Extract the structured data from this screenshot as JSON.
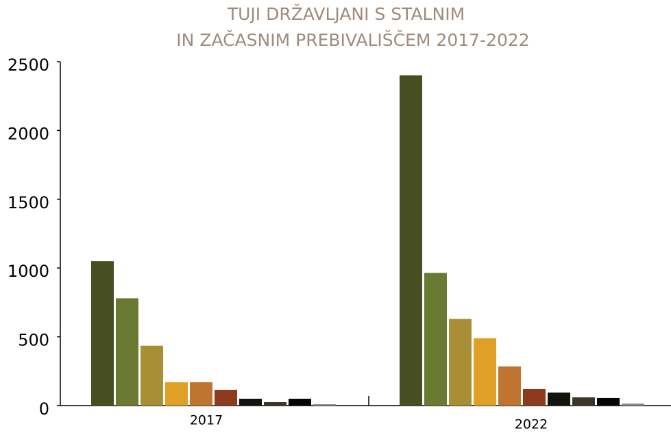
{
  "chart_data": {
    "type": "bar",
    "title": [
      "TUJI DRŽAVLJANI S STALNIM",
      "IN ZAČASNIM PREBIVALIŠČEM 2017-2022"
    ],
    "categories": [
      "2017",
      "2022"
    ],
    "series": [
      {
        "color": "#474f22",
        "values": [
          1050,
          2400
        ]
      },
      {
        "color": "#6b7a32",
        "values": [
          780,
          965
        ]
      },
      {
        "color": "#a88e35",
        "values": [
          435,
          630
        ]
      },
      {
        "color": "#e0a028",
        "values": [
          170,
          490
        ]
      },
      {
        "color": "#bf7430",
        "values": [
          170,
          285
        ]
      },
      {
        "color": "#8e3a1e",
        "values": [
          115,
          120
        ]
      },
      {
        "color": "#15130f",
        "values": [
          50,
          95
        ]
      },
      {
        "color": "#3d3528",
        "values": [
          25,
          60
        ]
      },
      {
        "color": "#050505",
        "values": [
          50,
          55
        ]
      },
      {
        "color": "#8a8a8a",
        "values": [
          10,
          15
        ]
      }
    ],
    "ylim": [
      0,
      2500
    ],
    "yticks": [
      0,
      500,
      1000,
      1500,
      2000,
      2500
    ],
    "grid": false
  }
}
